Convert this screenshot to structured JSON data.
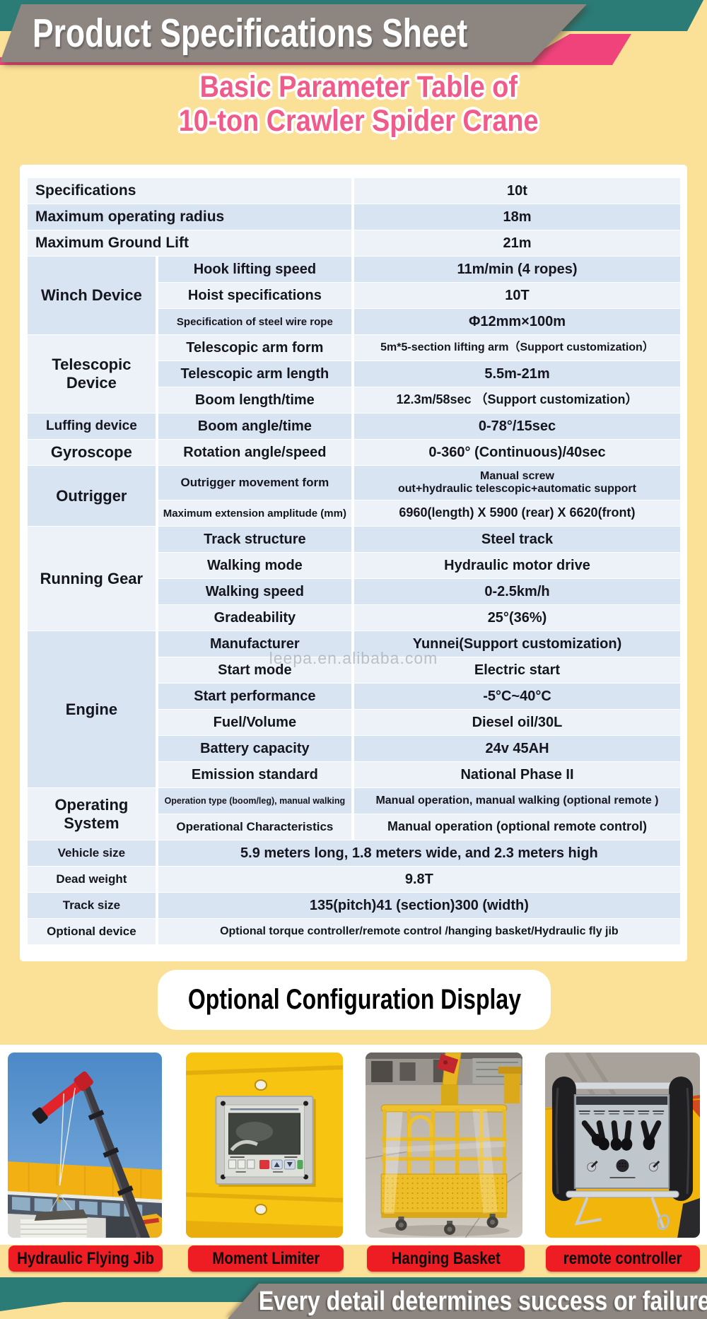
{
  "header": {
    "banner_title": "Product Specifications Sheet"
  },
  "title": {
    "line1": "Basic Parameter Table of",
    "line2": "10-ton Crawler Spider Crane"
  },
  "watermark_text": "leepa.en.alibaba.com",
  "spec_table": {
    "blocks": [
      {
        "label": "Specifications",
        "wide_label": true,
        "rows": [
          {
            "value": "10t"
          }
        ]
      },
      {
        "label": "Maximum operating radius",
        "wide_label": true,
        "rows": [
          {
            "value": "18m"
          }
        ]
      },
      {
        "label": "Maximum Ground Lift",
        "wide_label": true,
        "rows": [
          {
            "value": "21m"
          }
        ]
      },
      {
        "label": "Winch Device",
        "rows": [
          {
            "sub": "Hook lifting speed",
            "value": "11m/min (4 ropes)"
          },
          {
            "sub": "Hoist specifications",
            "value": "10T"
          },
          {
            "sub": "Specification of steel wire rope",
            "sub_size": "small",
            "value": "Φ12mm×100m"
          }
        ]
      },
      {
        "label": "Telescopic Device",
        "rows": [
          {
            "sub": "Telescopic arm form",
            "value": "5m*5-section lifting arm（Support customization）",
            "value_size": "small"
          },
          {
            "sub": "Telescopic arm length",
            "value": "5.5m-21m"
          },
          {
            "sub": "Boom length/time",
            "value": "12.3m/58sec （Support customization）",
            "value_size": "med"
          }
        ]
      },
      {
        "label": "Luffing device",
        "label_size": "med",
        "rows": [
          {
            "sub": "Boom angle/time",
            "value": "0-78°/15sec"
          }
        ]
      },
      {
        "label": "Gyroscope",
        "rows": [
          {
            "sub": "Rotation angle/speed",
            "value": "0-360° (Continuous)/40sec"
          }
        ]
      },
      {
        "label": "Outrigger",
        "rows": [
          {
            "sub": "Outrigger movement form",
            "sub_size": "med",
            "tall": true,
            "value_lines": [
              "Manual screw",
              "out+hydraulic telescopic+automatic support"
            ],
            "value_size": "small"
          },
          {
            "sub": "Maximum extension amplitude (mm)",
            "sub_size": "small",
            "value": "6960(length) X 5900 (rear) X 6620(front)",
            "value_size": "med"
          }
        ]
      },
      {
        "label": "Running Gear",
        "rows": [
          {
            "sub": "Track structure",
            "value": "Steel track"
          },
          {
            "sub": "Walking mode",
            "value": "Hydraulic motor drive"
          },
          {
            "sub": "Walking speed",
            "value": "0-2.5km/h"
          },
          {
            "sub": "Gradeability",
            "value": "25°(36%)"
          }
        ]
      },
      {
        "label": "Engine",
        "rows": [
          {
            "sub": "Manufacturer",
            "value": "Yunnei(Support customization)"
          },
          {
            "sub": "Start mode",
            "value": "Electric start"
          },
          {
            "sub": "Start performance",
            "value": "-5°C~40°C"
          },
          {
            "sub": "Fuel/Volume",
            "value": "Diesel oil/30L"
          },
          {
            "sub": "Battery capacity",
            "value": "24v 45AH"
          },
          {
            "sub": "Emission standard",
            "value": "National Phase II"
          }
        ]
      },
      {
        "label": "Operating System",
        "rows": [
          {
            "sub": "Operation type (boom/leg), manual walking",
            "sub_size": "xsmall",
            "value": "Manual operation, manual walking (optional remote )",
            "value_size": "small"
          },
          {
            "sub": "Operational Characteristics",
            "sub_size": "med",
            "value": "Manual operation (optional remote control)",
            "value_size": "med"
          }
        ]
      },
      {
        "label": "Vehicle size",
        "label_size": "small",
        "wide_value": true,
        "rows": [
          {
            "value": "5.9 meters long, 1.8 meters wide, and 2.3 meters high"
          }
        ]
      },
      {
        "label": "Dead weight",
        "label_size": "small",
        "wide_value": true,
        "rows": [
          {
            "value": "9.8T"
          }
        ]
      },
      {
        "label": "Track size",
        "label_size": "small",
        "wide_value": true,
        "rows": [
          {
            "value": "135(pitch)41 (section)300 (width)"
          }
        ]
      },
      {
        "label": "Optional device",
        "label_size": "small",
        "wide_value": true,
        "rows": [
          {
            "value": "Optional torque controller/remote control /hanging basket/Hydraulic fly jib",
            "value_size": "small"
          }
        ]
      }
    ]
  },
  "optional_section": {
    "title": "Optional Configuration Display",
    "items": [
      {
        "label": "Hydraulic Flying Jib"
      },
      {
        "label": "Moment Limiter"
      },
      {
        "label": "Hanging Basket"
      },
      {
        "label": "remote controller"
      }
    ]
  },
  "footer": {
    "slogan": "Every detail determines success or failure"
  },
  "colors": {
    "background": "#FBE197",
    "teal": "#2B7B76",
    "banner_gray": "#8C8580",
    "pink": "#F0437B",
    "title_pink": "#EF5C89",
    "row_light": "#EDF2F9",
    "row_dark": "#D9E4F2",
    "label_red": "#EE1D23",
    "text_dark": "#15151E"
  }
}
